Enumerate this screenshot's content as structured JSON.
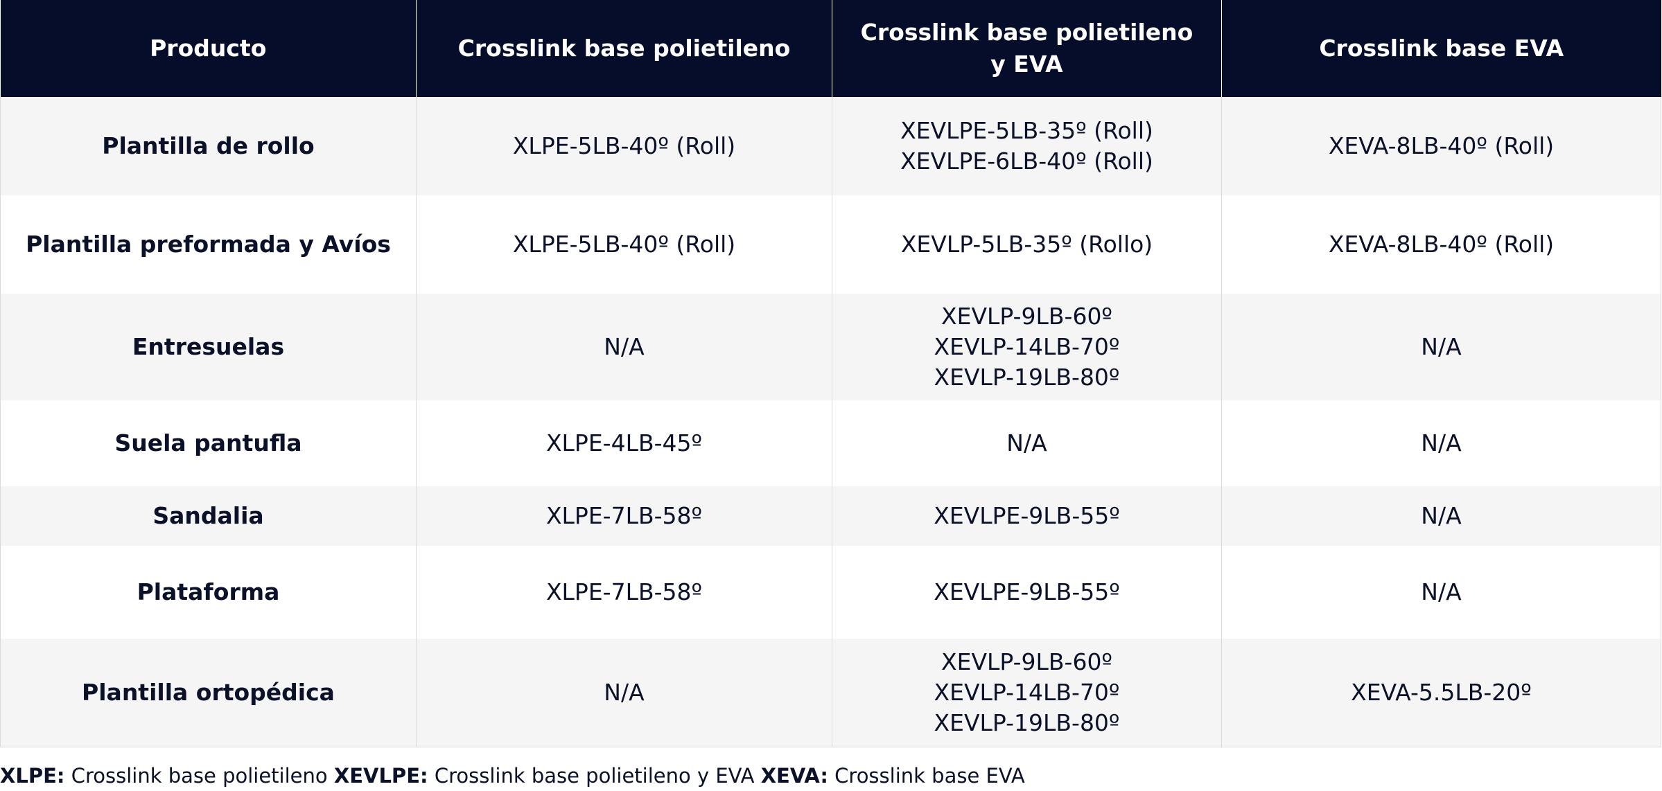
{
  "table": {
    "headers": [
      "Producto",
      "Crosslink base polietileno",
      "Crosslink base polietileno y EVA",
      "Crosslink base EVA"
    ],
    "rows": [
      {
        "product": "Plantilla de rollo",
        "xlpe": [
          "XLPE-5LB-40º (Roll)"
        ],
        "xevlpe": [
          "XEVLPE-5LB-35º (Roll)",
          "XEVLPE-6LB-40º (Roll)"
        ],
        "xeva": [
          "XEVA-8LB-40º (Roll)"
        ]
      },
      {
        "product": "Plantilla preformada y Avíos",
        "xlpe": [
          "XLPE-5LB-40º (Roll)"
        ],
        "xevlpe": [
          "XEVLP-5LB-35º (Rollo)"
        ],
        "xeva": [
          "XEVA-8LB-40º (Roll)"
        ]
      },
      {
        "product": "Entresuelas",
        "xlpe": [
          "N/A"
        ],
        "xevlpe": [
          "XEVLP-9LB-60º",
          "XEVLP-14LB-70º",
          "XEVLP-19LB-80º"
        ],
        "xeva": [
          "N/A"
        ]
      },
      {
        "product": "Suela pantufla",
        "xlpe": [
          "XLPE-4LB-45º"
        ],
        "xevlpe": [
          "N/A"
        ],
        "xeva": [
          "N/A"
        ]
      },
      {
        "product": "Sandalia",
        "xlpe": [
          "XLPE-7LB-58º"
        ],
        "xevlpe": [
          "XEVLPE-9LB-55º"
        ],
        "xeva": [
          "N/A"
        ]
      },
      {
        "product": "Plataforma",
        "xlpe": [
          "XLPE-7LB-58º"
        ],
        "xevlpe": [
          "XEVLPE-9LB-55º"
        ],
        "xeva": [
          "N/A"
        ]
      },
      {
        "product": "Plantilla ortopédica",
        "xlpe": [
          "N/A"
        ],
        "xevlpe": [
          "XEVLP-9LB-60º",
          "XEVLP-14LB-70º",
          "XEVLP-19LB-80º"
        ],
        "xeva": [
          "XEVA-5.5LB-20º"
        ]
      }
    ]
  },
  "legend": {
    "items": [
      {
        "abbr": "XLPE:",
        "text": "Crosslink base polietileno"
      },
      {
        "abbr": "XEVLPE:",
        "text": "Crosslink base polietileno y EVA"
      },
      {
        "abbr": "XEVA:",
        "text": "Crosslink base EVA"
      }
    ]
  },
  "colors": {
    "header_bg": "#060d2b",
    "header_text": "#ffffff",
    "stripe": "#f5f5f5",
    "text": "#0a1128"
  }
}
